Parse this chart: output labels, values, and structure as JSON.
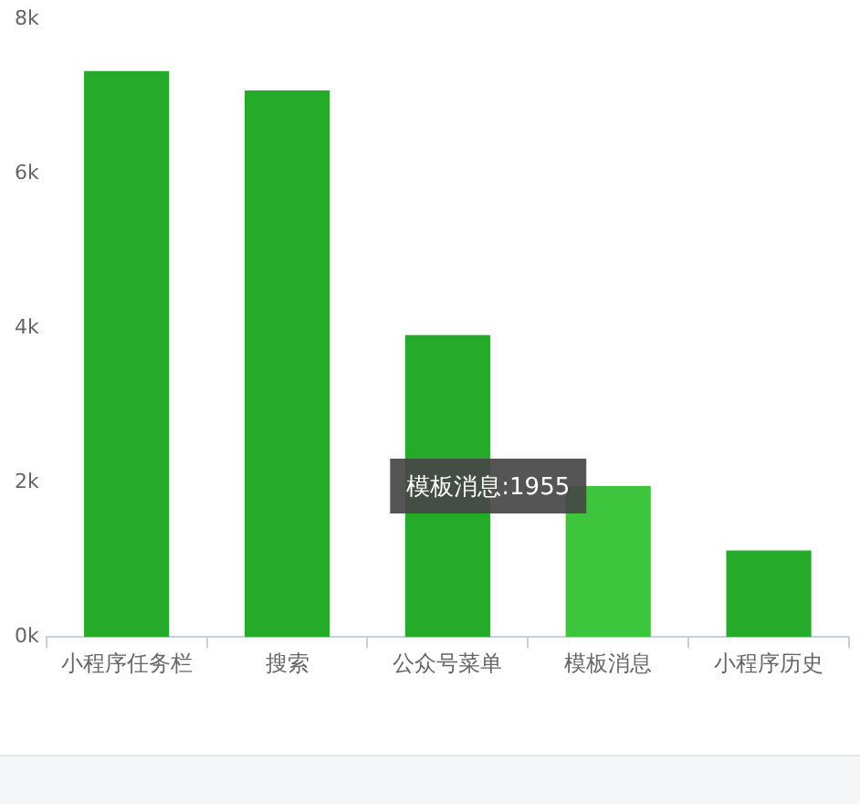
{
  "chart_data": {
    "type": "bar",
    "categories": [
      "小程序任务栏",
      "搜索",
      "公众号菜单",
      "模板消息",
      "小程序历史"
    ],
    "values": [
      7330,
      7080,
      3910,
      1955,
      1120
    ],
    "colors": [
      "#26aa2a",
      "#26aa2a",
      "#26aa2a",
      "#3dc53d",
      "#26aa2a"
    ],
    "ylim": [
      0,
      8000
    ],
    "yticks": [
      {
        "value": 0,
        "label": "0k"
      },
      {
        "value": 2000,
        "label": "2k"
      },
      {
        "value": 4000,
        "label": "4k"
      },
      {
        "value": 6000,
        "label": "6k"
      },
      {
        "value": 8000,
        "label": "8k"
      }
    ],
    "annotations": [
      {
        "text": "模板消息:1955",
        "x": "模板消息",
        "y": 1955
      }
    ]
  }
}
